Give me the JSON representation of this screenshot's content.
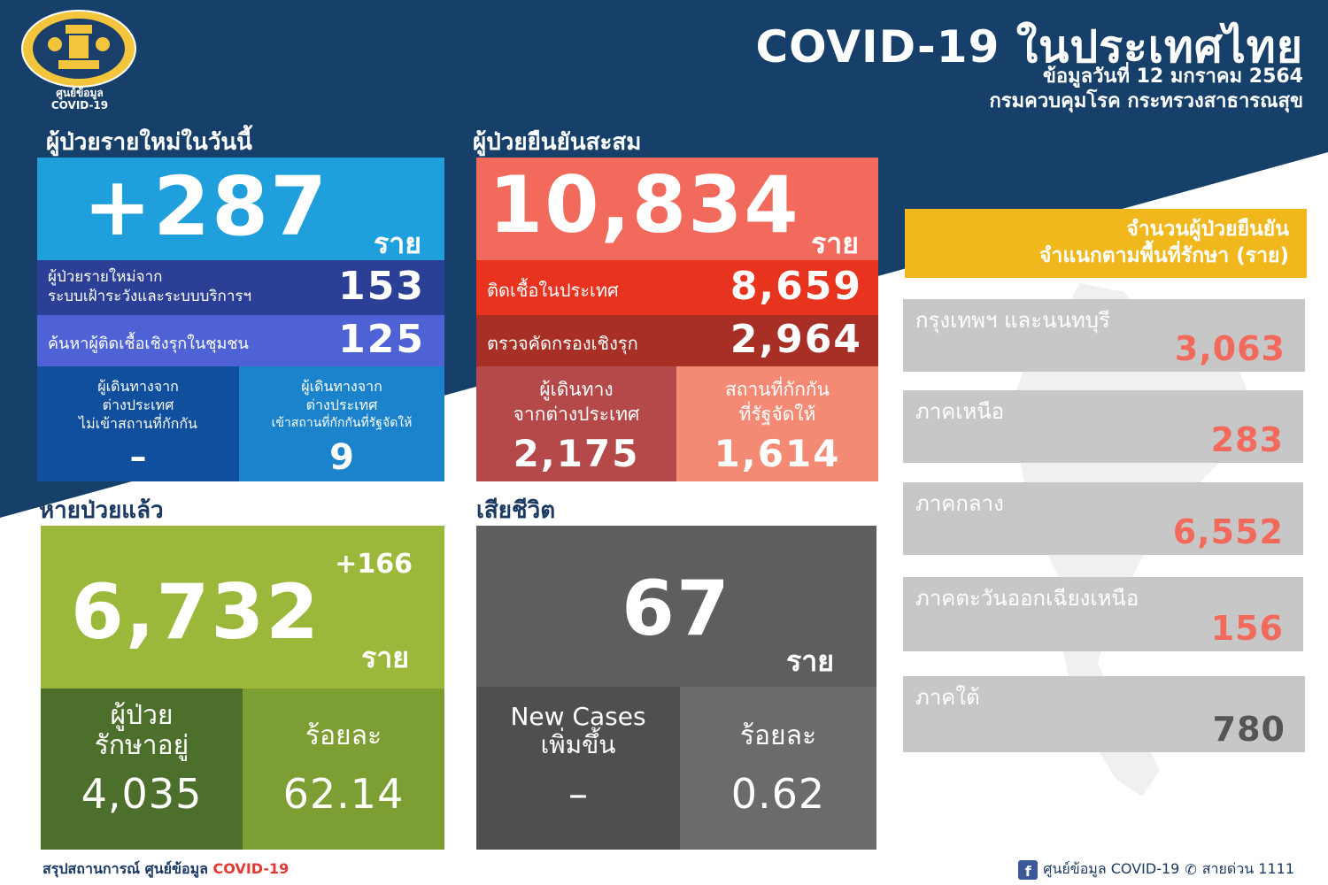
{
  "header": {
    "logo_caption_line1": "ศูนย์ข้อมูล",
    "logo_caption_line2": "COVID-19",
    "title": "COVID-19 ในประเทศไทย",
    "date": "ข้อมูลวันที่ 12 มกราคม 2564",
    "source": "กรมควบคุมโรค กระทรวงสาธารณสุข"
  },
  "new_cases": {
    "section_label": "ผู้ป่วยรายใหม่ในวันนี้",
    "total": "+287",
    "unit": "ราย",
    "surveillance_label_1": "ผู้ป่วยรายใหม่จาก",
    "surveillance_label_2": "ระบบเฝ้าระวังและระบบบริการฯ",
    "surveillance_value": "153",
    "community_label": "ค้นหาผู้ติดเชื้อเชิงรุกในชุมชน",
    "community_value": "125",
    "traveler_no_quarantine_1": "ผู้เดินทางจาก",
    "traveler_no_quarantine_2": "ต่างประเทศ",
    "traveler_no_quarantine_3": "ไม่เข้าสถานที่กักกัน",
    "traveler_no_quarantine_value": "–",
    "traveler_quarantine_1": "ผู้เดินทางจาก",
    "traveler_quarantine_2": "ต่างประเทศ",
    "traveler_quarantine_3": "เข้าสถานที่กักกันที่รัฐจัดให้",
    "traveler_quarantine_value": "9"
  },
  "cumulative": {
    "section_label": "ผู้ป่วยยืนยันสะสม",
    "total": "10,834",
    "unit": "ราย",
    "domestic_label": "ติดเชื้อในประเทศ",
    "domestic_value": "8,659",
    "proactive_label": "ตรวจคัดกรองเชิงรุก",
    "proactive_value": "2,964",
    "travelers_label_1": "ผู้เดินทาง",
    "travelers_label_2": "จากต่างประเทศ",
    "travelers_value": "2,175",
    "state_quarantine_label_1": "สถานที่กักกัน",
    "state_quarantine_label_2": "ที่รัฐจัดให้",
    "state_quarantine_value": "1,614"
  },
  "recovered": {
    "section_label": "หายป่วยแล้ว",
    "delta": "+166",
    "total": "6,732",
    "unit": "ราย",
    "in_treatment_label_1": "ผู้ป่วย",
    "in_treatment_label_2": "รักษาอยู่",
    "in_treatment_value": "4,035",
    "percent_label": "ร้อยละ",
    "percent_value": "62.14"
  },
  "deaths": {
    "section_label": "เสียชีวิต",
    "total": "67",
    "unit": "ราย",
    "new_label_1": "New Cases",
    "new_label_2": "เพิ่มขึ้น",
    "new_value": "–",
    "percent_label": "ร้อยละ",
    "percent_value": "0.62"
  },
  "regions": {
    "title_line1": "จำนวนผู้ป่วยยืนยัน",
    "title_line2": "จำแนกตามพื้นที่รักษา (ราย)",
    "items": [
      {
        "name": "กรุงเทพฯ และนนทบุรี",
        "value": "3,063"
      },
      {
        "name": "ภาคเหนือ",
        "value": "283"
      },
      {
        "name": "ภาคกลาง",
        "value": "6,552"
      },
      {
        "name": "ภาคตะวันออกเฉียงเหนือ",
        "value": "156"
      },
      {
        "name": "ภาคใต้",
        "value": "780"
      }
    ]
  },
  "footer": {
    "left_prefix": "สรุปสถานการณ์ ศูนย์ข้อมูล",
    "left_highlight": "COVID-19",
    "facebook_icon": "f",
    "facebook_label": "ศูนย์ข้อมูล COVID-19",
    "hotline_label": "สายด่วน 1111"
  },
  "colors": {
    "navy": "#16406a",
    "blue_main": "#1fa0dc",
    "red_main": "#f26a5b",
    "green_main": "#9cb83a",
    "gray_main": "#5e5e5e",
    "gold": "#f0b81c"
  }
}
